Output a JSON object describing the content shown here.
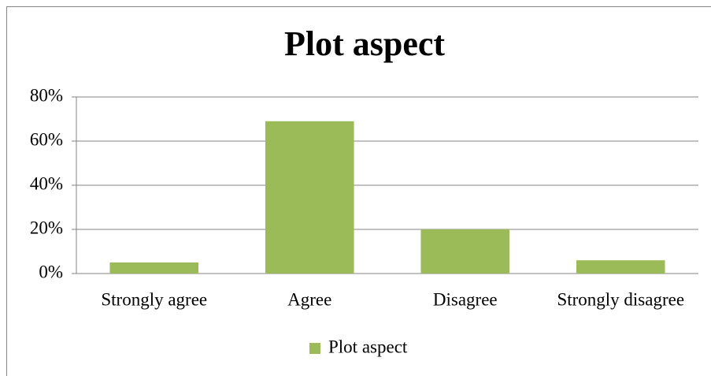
{
  "chart_data": {
    "type": "bar",
    "title": "Plot aspect",
    "categories": [
      "Strongly agree",
      "Agree",
      "Disagree",
      "Strongly disagree"
    ],
    "series": [
      {
        "name": "Plot aspect",
        "color": "#9bbb59",
        "values": [
          5,
          69,
          20,
          6
        ]
      }
    ],
    "ylim": [
      0,
      80
    ],
    "yticks": [
      {
        "value": 0,
        "label": "0%"
      },
      {
        "value": 20,
        "label": "20%"
      },
      {
        "value": 40,
        "label": "40%"
      },
      {
        "value": 60,
        "label": "60%"
      },
      {
        "value": 80,
        "label": "80%"
      }
    ],
    "grid": true,
    "legend": "bottom"
  }
}
